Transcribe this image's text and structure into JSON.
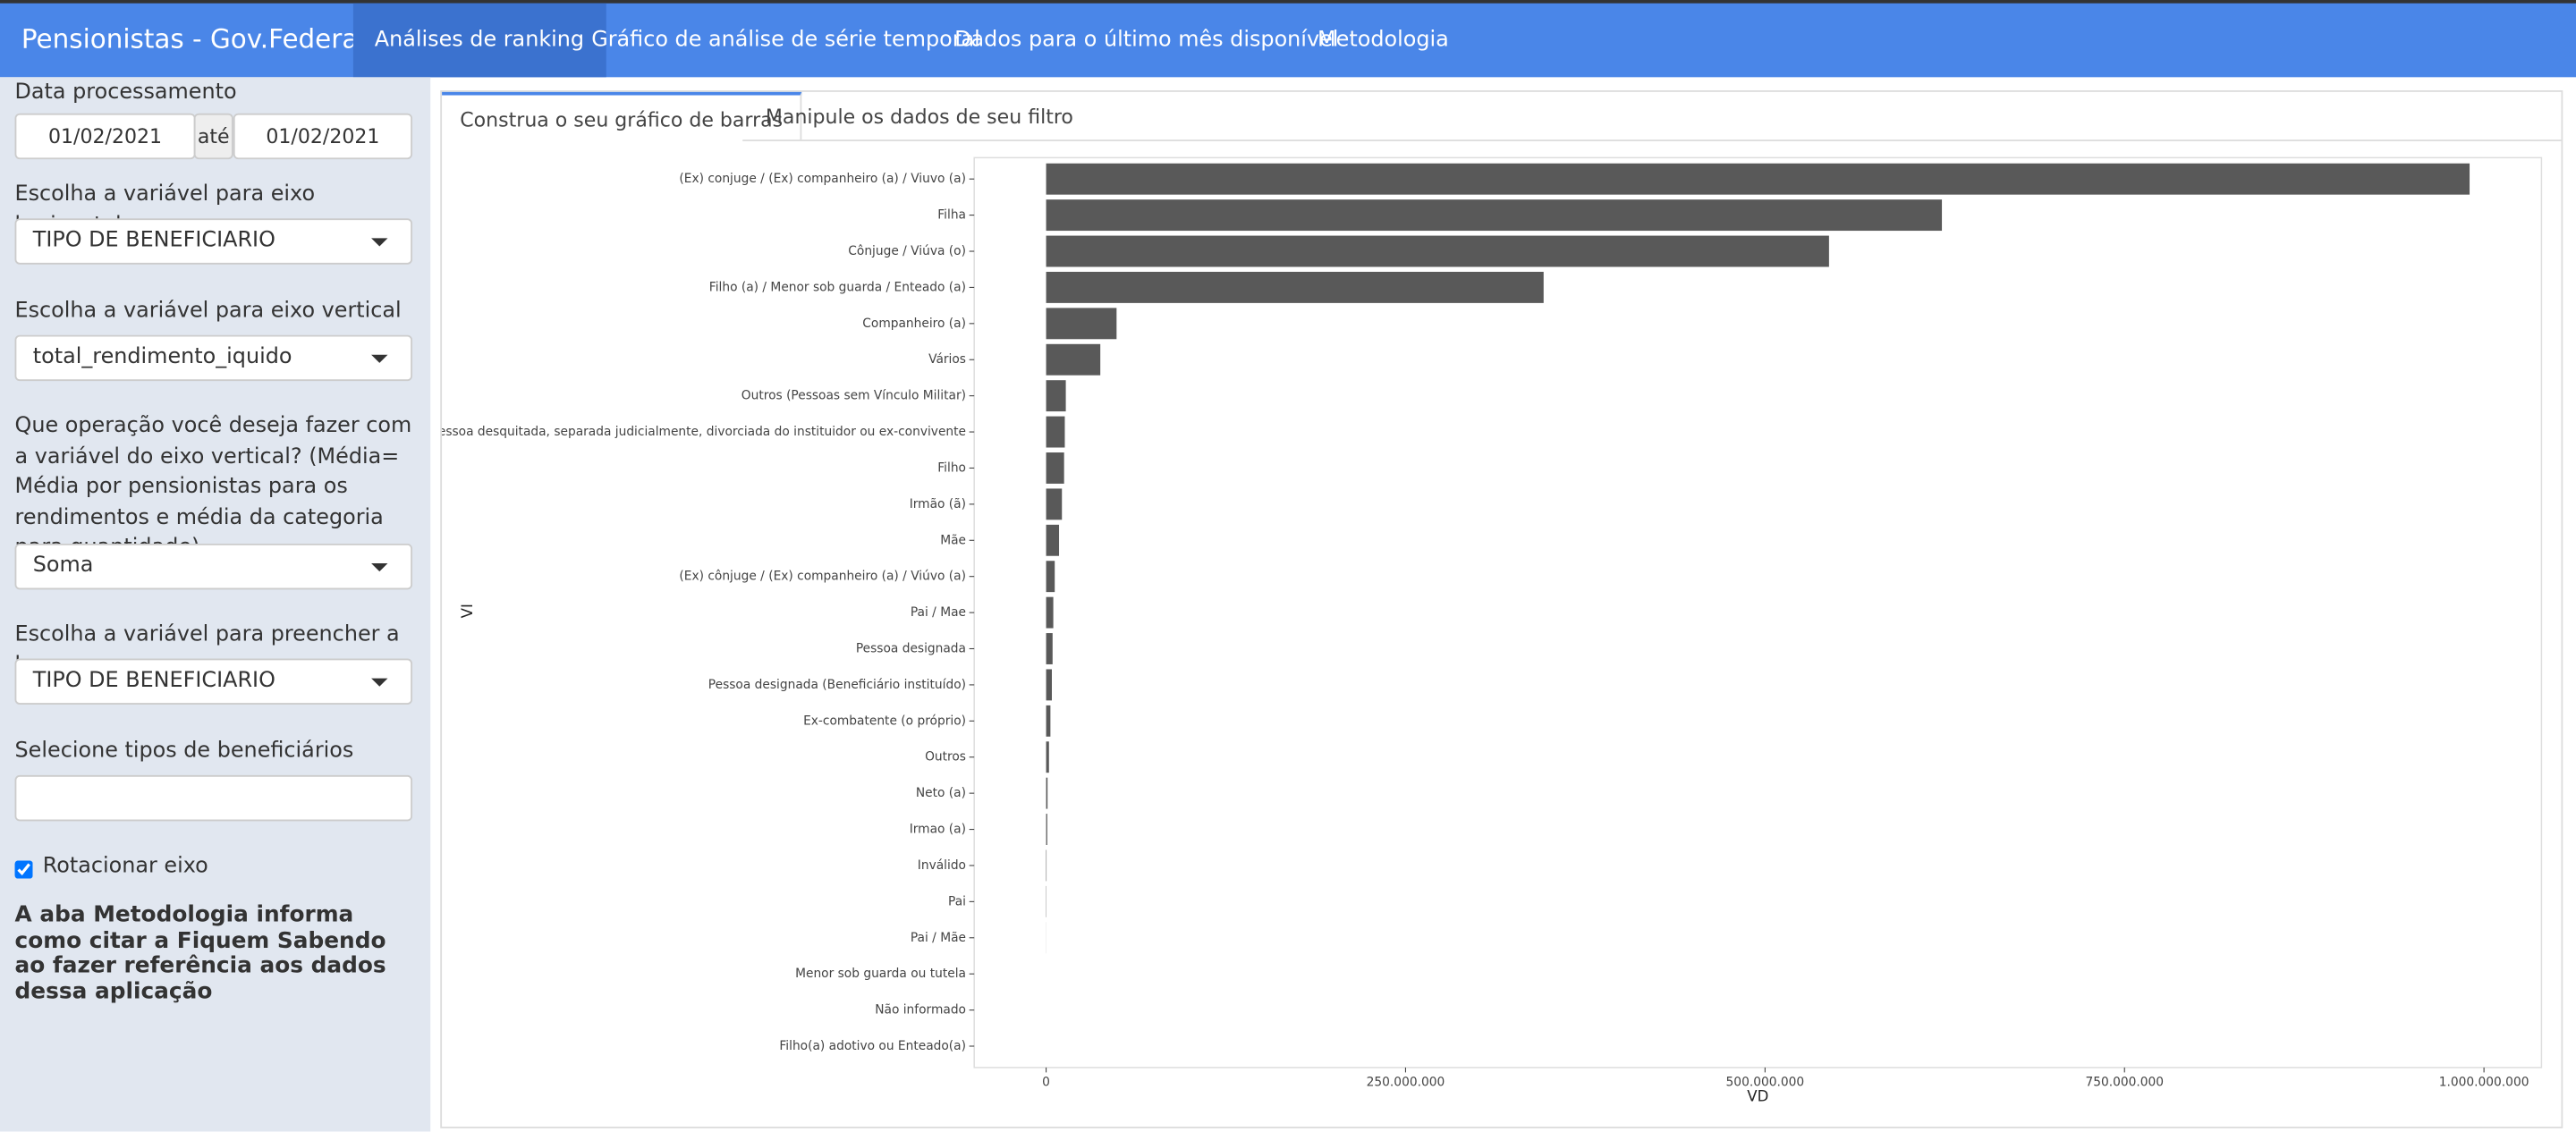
{
  "navbar": {
    "brand": "Pensionistas - Gov.Federal",
    "tabs": [
      "Análises de ranking",
      "Gráfico de análise de série temporal",
      "Dados para o último mês disponível",
      "Metodologia"
    ]
  },
  "sidebar": {
    "date_label": "Data processamento",
    "date_start": "01/02/2021",
    "date_sep": "até",
    "date_end": "01/02/2021",
    "fields": [
      {
        "label": "Escolha a variável para eixo horizontal",
        "value": "TIPO DE BENEFICIARIO"
      },
      {
        "label": "Escolha a variável para eixo vertical",
        "value": "total_rendimento_iquido"
      },
      {
        "label": "Que operação você deseja fazer com a variável do eixo vertical? (Média= Média por pensionistas para os rendimentos e média da categoria para quantidade)",
        "value": "Soma"
      },
      {
        "label": "Escolha a variável para preencher a barra",
        "value": "TIPO DE BENEFICIARIO"
      }
    ],
    "beneficiarios_label": "Selecione tipos de beneficiários",
    "checkbox_label": "Rotacionar eixo",
    "note": "A aba Metodologia informa como citar a Fiquem Sabendo ao fazer referência aos dados dessa aplicação"
  },
  "panel_tabs": [
    "Construa o seu gráfico de barras",
    "Manipule os dados de seu filtro"
  ],
  "chart_data": {
    "type": "bar",
    "orientation": "horizontal",
    "x_label": "VD",
    "y_label": "VI",
    "color": "#595959",
    "categories": [
      "(Ex) conjuge / (Ex) companheiro (a) / Viuvo (a)",
      "Filha",
      "Cônjuge / Viúva (o)",
      "Filho (a) / Menor sob guarda / Enteado (a)",
      "Companheiro (a)",
      "Vários",
      "Outros (Pessoas sem Vínculo Militar)",
      "Pessoa desquitada, separada judicialmente, divorciada do instituidor ou ex-convivente",
      "Filho",
      "Irmão (ã)",
      "Mãe",
      "(Ex) cônjuge / (Ex) companheiro (a) / Viúvo (a)",
      "Pai / Mae",
      "Pessoa designada",
      "Pessoa designada (Beneficiário instituído)",
      "Ex-combatente (o próprio)",
      "Outros",
      "Neto (a)",
      "Irmao (a)",
      "Inválido",
      "Pai",
      "Pai / Mãe",
      "Menor sob guarda ou tutela",
      "Não informado",
      "Filho(a) adotivo ou Enteado(a)"
    ],
    "values": [
      990000000,
      623000000,
      544500000,
      346000000,
      49000000,
      37700000,
      13700000,
      13000000,
      12500000,
      11000000,
      9000000,
      6000000,
      5000000,
      4500000,
      4000000,
      3000000,
      2000000,
      1000000,
      800000,
      300000,
      200000,
      50000,
      0,
      0,
      0
    ],
    "xlim": [
      -50000000,
      1040000000
    ],
    "xticks": [
      0,
      {
        "value": 250000000,
        "label": "250.000.000"
      },
      {
        "value": 500000000,
        "label": "500.000.000"
      },
      {
        "value": 750000000,
        "label": "750.000.000"
      },
      {
        "value": 1000000000,
        "label": "1.000.000.000"
      }
    ],
    "grid": false
  }
}
